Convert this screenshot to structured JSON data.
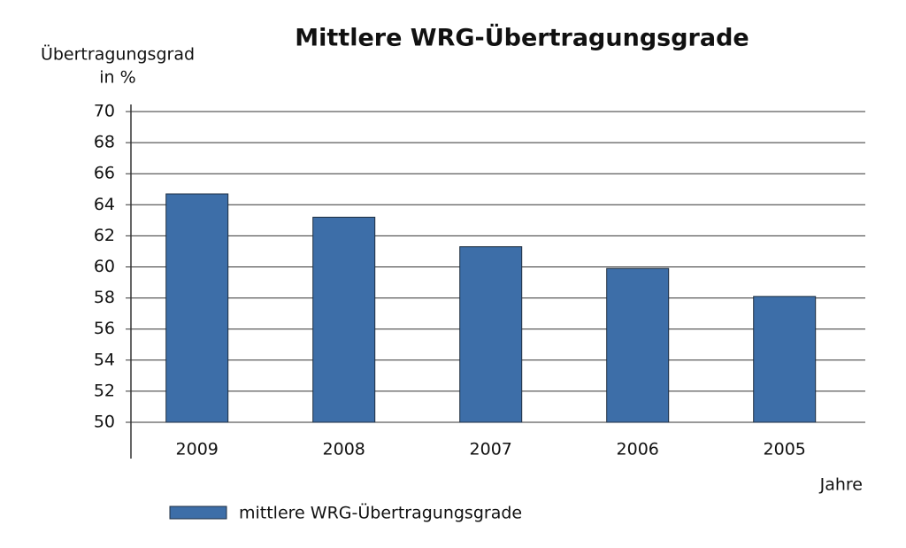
{
  "chart_data": {
    "type": "bar",
    "title": "Mittlere WRG-Übertragungsgrade",
    "ylabel": [
      "Übertragungsgrad",
      "in %"
    ],
    "xlabel": "Jahre",
    "categories": [
      "2009",
      "2008",
      "2007",
      "2006",
      "2005"
    ],
    "series": [
      {
        "name": "mittlere WRG-Übertragungsgrade",
        "color": "#3d6ea8",
        "values": [
          64.7,
          63.2,
          61.3,
          59.9,
          58.1
        ]
      }
    ],
    "ylim": [
      50,
      70
    ],
    "yticks": [
      50,
      52,
      54,
      56,
      58,
      60,
      62,
      64,
      66,
      68,
      70
    ],
    "grid": true,
    "legend": "bottom"
  }
}
